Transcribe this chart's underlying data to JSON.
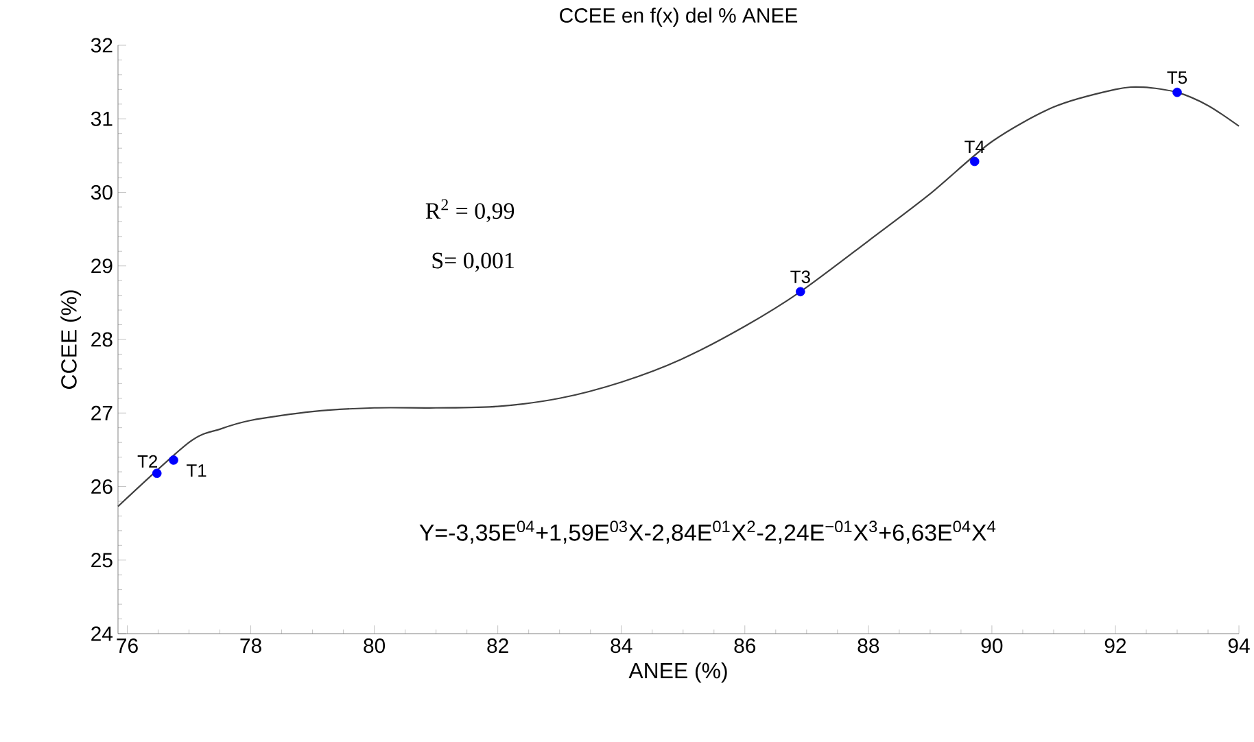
{
  "chart_data": {
    "type": "scatter",
    "title": "CCEE en f(x) del %  ANEE",
    "xlabel": "ANEE (%)",
    "ylabel": "CCEE (%)",
    "xlim": [
      75.85,
      94
    ],
    "ylim": [
      24,
      32
    ],
    "xticks": [
      76,
      78,
      80,
      82,
      84,
      86,
      88,
      90,
      92,
      94
    ],
    "yticks": [
      24,
      25,
      26,
      27,
      28,
      29,
      30,
      31,
      32
    ],
    "grid": false,
    "series": [
      {
        "type": "line",
        "color": "#404040",
        "marker": "none",
        "line_style": "solid",
        "x": [
          75.85,
          77,
          77.5,
          78,
          79,
          80,
          81,
          82,
          83,
          84,
          84.97,
          86,
          86.9,
          88,
          89,
          90,
          91,
          92,
          92.45,
          93,
          93.5,
          94
        ],
        "values": [
          25.73,
          26.6,
          26.78,
          26.9,
          27.02,
          27.07,
          27.07,
          27.09,
          27.2,
          27.42,
          27.73,
          28.18,
          28.65,
          29.34,
          29.98,
          30.69,
          31.16,
          31.4,
          31.43,
          31.36,
          31.18,
          30.9
        ]
      },
      {
        "color": "#0000ff",
        "marker": "circle",
        "x": [
          76.75,
          76.48,
          86.9,
          89.72,
          93.0
        ],
        "values": [
          26.36,
          26.18,
          28.65,
          30.42,
          31.36
        ]
      }
    ],
    "annotations": [
      {
        "text": "T1",
        "x": 76.75,
        "y": 26.36
      },
      {
        "text": "T2",
        "x": 76.48,
        "y": 26.18
      },
      {
        "text": "T3",
        "x": 86.9,
        "y": 28.65
      },
      {
        "text": "T4",
        "x": 89.72,
        "y": 30.42
      },
      {
        "text": "T5",
        "x": 93.0,
        "y": 31.36
      },
      "R$^{2}$ = 0,99",
      "S= 0,001",
      "Y=-3,35E$^{04}$+1,59E$^{03}$X-2,84E$^{01}$X$^{2}$-2,24E$^{−01}$X$^{3}$+6,63E$^{04}$X$^{4}$"
    ]
  }
}
